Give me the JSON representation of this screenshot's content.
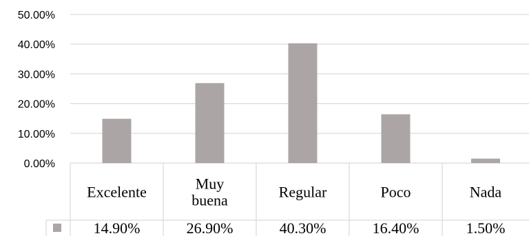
{
  "chart_data": {
    "type": "bar",
    "title": "",
    "xlabel": "",
    "ylabel": "",
    "categories": [
      [
        "Excelente"
      ],
      [
        "Muy",
        "buena"
      ],
      [
        "Regular"
      ],
      [
        "Poco"
      ],
      [
        "Nada"
      ]
    ],
    "series": [
      {
        "values": [
          14.9,
          26.9,
          40.3,
          16.4,
          1.5
        ],
        "value_labels": [
          "14.90%",
          "26.90%",
          "40.30%",
          "16.40%",
          "1.50%"
        ],
        "color": "#aba6a5"
      }
    ],
    "ylim": [
      0,
      50
    ],
    "yticks": [
      0,
      10,
      20,
      30,
      40,
      50
    ],
    "ytick_labels": [
      "0.00%",
      "10.00%",
      "20.00%",
      "30.00%",
      "40.00%",
      "50.00%"
    ],
    "grid": true,
    "data_table": true,
    "gridline_color": "#d9d9d9",
    "table_border_color": "#d9d9d9"
  }
}
